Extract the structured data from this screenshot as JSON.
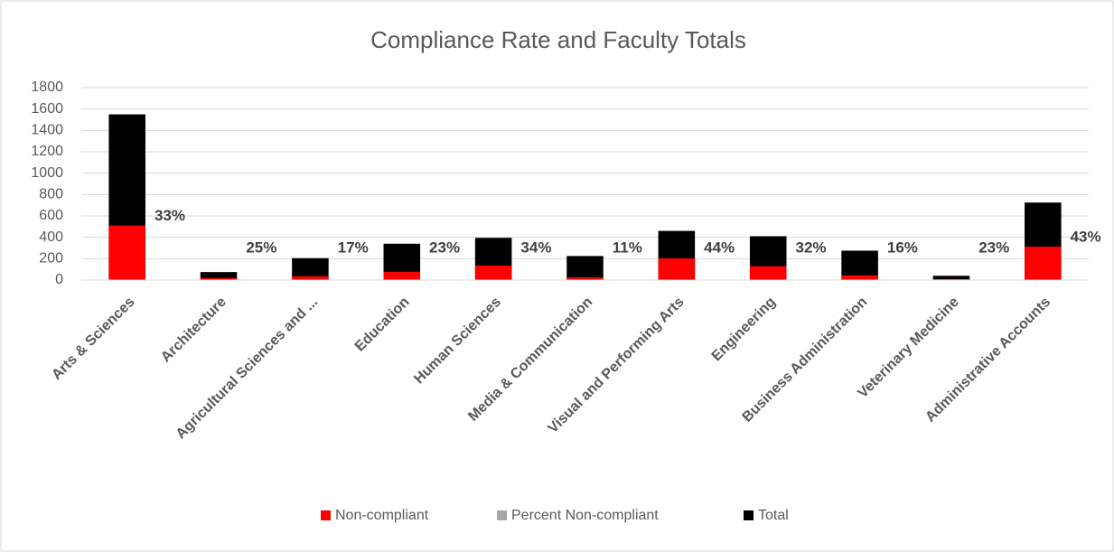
{
  "chart_data": {
    "type": "bar",
    "title": "Compliance Rate and Faculty Totals",
    "categories": [
      "Arts & Sciences",
      "Architecture",
      "Agricultural Sciences and ...",
      "Education",
      "Human Sciences",
      "Media & Communication",
      "Visual and Performing Arts",
      "Engineering",
      "Business Administration",
      "Veterinary Medicine",
      "Administrative Accounts"
    ],
    "series": [
      {
        "name": "Non-compliant",
        "color": "#ff0000",
        "values": [
          510,
          19,
          35,
          78,
          135,
          25,
          203,
          130,
          44,
          9,
          312
        ]
      },
      {
        "name": "Percent Non-compliant",
        "color": "#a5a5a5",
        "values": [
          0.33,
          0.25,
          0.17,
          0.23,
          0.34,
          0.11,
          0.44,
          0.32,
          0.16,
          0.23,
          0.43
        ],
        "value_labels": [
          "33%",
          "25%",
          "17%",
          "23%",
          "34%",
          "11%",
          "44%",
          "32%",
          "16%",
          "23%",
          "43%"
        ]
      },
      {
        "name": "Total",
        "color": "#000000",
        "values": [
          1550,
          75,
          205,
          340,
          395,
          225,
          460,
          410,
          275,
          40,
          725
        ]
      }
    ],
    "ylim": [
      0,
      1800
    ],
    "yticks": [
      0,
      200,
      400,
      600,
      800,
      1000,
      1200,
      1400,
      1600,
      1800
    ],
    "grid": true,
    "legend": "bottom"
  }
}
